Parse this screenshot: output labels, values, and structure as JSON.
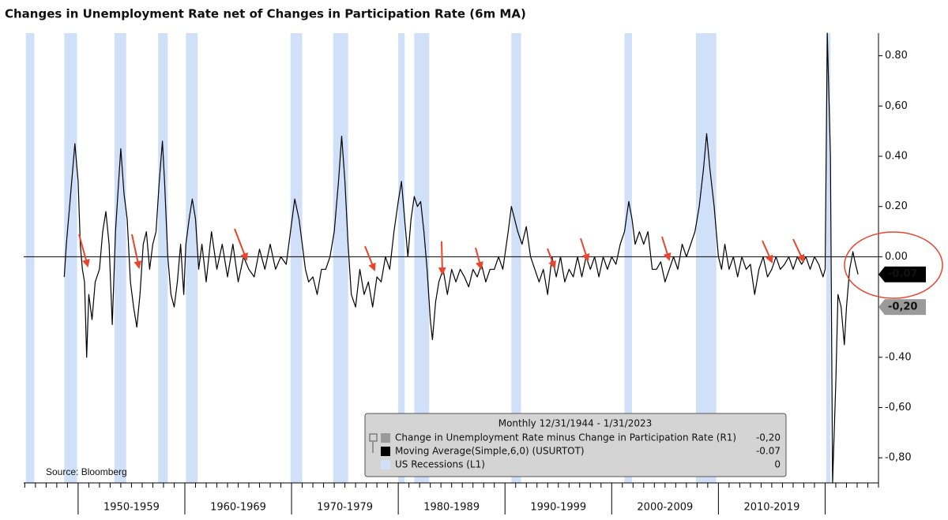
{
  "chart_data": {
    "type": "line",
    "title": "Changes in Unemployment Rate net of Changes in Participation Rate (6m MA)",
    "source": "Source: Bloomberg",
    "legend_title": "Monthly 12/31/1944 - 1/31/2023",
    "xlim": [
      1944.9,
      2025
    ],
    "ylim": [
      -0.9,
      0.89
    ],
    "xticks": [
      {
        "value": 1955,
        "label": "1950-1959"
      },
      {
        "value": 1965,
        "label": "1960-1969"
      },
      {
        "value": 1975,
        "label": "1970-1979"
      },
      {
        "value": 1985,
        "label": "1980-1989"
      },
      {
        "value": 1995,
        "label": "1990-1999"
      },
      {
        "value": 2005,
        "label": "2000-2009"
      },
      {
        "value": 2015,
        "label": "2010-2019"
      }
    ],
    "yticks": [
      {
        "value": 0.8,
        "label": "0.80"
      },
      {
        "value": 0.6,
        "label": "0,60"
      },
      {
        "value": 0.4,
        "label": "0.40"
      },
      {
        "value": 0.2,
        "label": "0.20"
      },
      {
        "value": 0,
        "label": "0.00"
      },
      {
        "value": -0.4,
        "label": "-0.40"
      },
      {
        "value": -0.6,
        "label": "-0,60"
      },
      {
        "value": -0.8,
        "label": "-0,80"
      }
    ],
    "recessions": {
      "name": "US Recessions (L1)",
      "color": "#cfe0f8",
      "value_label": "0",
      "periods": [
        [
          1945.1,
          1945.9
        ],
        [
          1948.7,
          1949.9
        ],
        [
          1953.4,
          1954.5
        ],
        [
          1957.5,
          1958.4
        ],
        [
          1960.1,
          1961.2
        ],
        [
          1969.9,
          1971.0
        ],
        [
          1973.9,
          1975.3
        ],
        [
          1980.0,
          1980.6
        ],
        [
          1981.5,
          1982.9
        ],
        [
          1990.6,
          1991.5
        ],
        [
          2001.2,
          2001.9
        ],
        [
          2007.9,
          2009.8
        ],
        [
          2020.1,
          2020.5
        ]
      ]
    },
    "series": [
      {
        "name": "Change in Unemployment Rate minus Change in Participation Rate (R1)",
        "color": "#9a9a9a",
        "last_value": -0.2,
        "last_label": "-0,20"
      },
      {
        "name": "Moving Average(Simple,6,0) (USURTOT)",
        "color": "#000000",
        "last_value": -0.07,
        "last_label": "-0.07",
        "x": [
          1948.7,
          1948.9,
          1949.2,
          1949.5,
          1949.7,
          1950.0,
          1950.2,
          1950.4,
          1950.6,
          1950.8,
          1951.0,
          1951.3,
          1951.6,
          1952.0,
          1952.3,
          1952.6,
          1952.9,
          1953.2,
          1953.5,
          1953.8,
          1954.0,
          1954.3,
          1954.6,
          1954.9,
          1955.2,
          1955.5,
          1955.8,
          1956.1,
          1956.4,
          1956.7,
          1957.0,
          1957.3,
          1957.6,
          1957.9,
          1958.1,
          1958.4,
          1958.7,
          1959.0,
          1959.3,
          1959.6,
          1959.9,
          1960.1,
          1960.4,
          1960.7,
          1961.0,
          1961.3,
          1961.6,
          1962.0,
          1962.5,
          1963.0,
          1963.5,
          1964.0,
          1964.5,
          1965.0,
          1965.5,
          1966.0,
          1966.5,
          1967.0,
          1967.5,
          1968.0,
          1968.5,
          1969.0,
          1969.5,
          1969.9,
          1970.3,
          1970.7,
          1971.0,
          1971.3,
          1971.6,
          1972.0,
          1972.4,
          1972.8,
          1973.2,
          1973.6,
          1974.0,
          1974.4,
          1974.7,
          1975.0,
          1975.3,
          1975.6,
          1976.0,
          1976.4,
          1976.8,
          1977.2,
          1977.6,
          1978.0,
          1978.4,
          1978.8,
          1979.2,
          1979.6,
          1980.0,
          1980.3,
          1980.6,
          1980.9,
          1981.2,
          1981.5,
          1981.8,
          1982.1,
          1982.4,
          1982.7,
          1983.0,
          1983.2,
          1983.5,
          1983.8,
          1984.2,
          1984.6,
          1985.0,
          1985.4,
          1985.8,
          1986.2,
          1986.6,
          1987.0,
          1987.4,
          1987.8,
          1988.2,
          1988.6,
          1989.0,
          1989.4,
          1989.8,
          1990.3,
          1990.6,
          1990.9,
          1991.2,
          1991.6,
          1992.0,
          1992.4,
          1992.8,
          1993.2,
          1993.6,
          1994.0,
          1994.4,
          1994.8,
          1995.2,
          1995.6,
          1996.0,
          1996.4,
          1996.8,
          1997.2,
          1997.6,
          1998.0,
          1998.4,
          1998.8,
          1999.2,
          1999.6,
          2000.0,
          2000.4,
          2000.8,
          2001.2,
          2001.6,
          2001.9,
          2002.2,
          2002.6,
          2003.0,
          2003.4,
          2003.8,
          2004.2,
          2004.6,
          2005.0,
          2005.4,
          2005.8,
          2006.2,
          2006.6,
          2007.0,
          2007.4,
          2007.8,
          2008.2,
          2008.6,
          2008.9,
          2009.2,
          2009.6,
          2010.0,
          2010.3,
          2010.6,
          2011.0,
          2011.4,
          2011.8,
          2012.2,
          2012.6,
          2013.0,
          2013.4,
          2013.8,
          2014.2,
          2014.6,
          2015.0,
          2015.4,
          2015.8,
          2016.2,
          2016.6,
          2017.0,
          2017.4,
          2017.8,
          2018.2,
          2018.6,
          2019.0,
          2019.4,
          2019.8,
          2020.0,
          2020.2,
          2020.5,
          2020.7,
          2021.0,
          2021.2,
          2021.5,
          2021.8,
          2022.0,
          2022.3,
          2022.6,
          2022.8,
          2023.08
        ],
        "values": [
          -0.08,
          0.05,
          0.2,
          0.35,
          0.45,
          0.3,
          0.05,
          -0.05,
          -0.1,
          -0.4,
          -0.15,
          -0.25,
          -0.1,
          -0.05,
          0.1,
          0.18,
          0.05,
          -0.27,
          0.1,
          0.3,
          0.43,
          0.25,
          0.15,
          -0.1,
          -0.2,
          -0.28,
          -0.15,
          0.05,
          0.1,
          -0.05,
          0.05,
          0.1,
          0.3,
          0.46,
          0.3,
          0.0,
          -0.15,
          -0.2,
          -0.1,
          0.05,
          -0.15,
          0.05,
          0.15,
          0.23,
          0.15,
          -0.05,
          0.05,
          -0.1,
          0.1,
          -0.05,
          0.05,
          -0.08,
          0.05,
          -0.1,
          0.0,
          -0.05,
          -0.08,
          0.03,
          -0.05,
          0.05,
          -0.05,
          0.0,
          -0.03,
          0.1,
          0.23,
          0.15,
          0.05,
          -0.05,
          -0.1,
          -0.08,
          -0.15,
          -0.05,
          -0.05,
          0.0,
          0.1,
          0.3,
          0.48,
          0.3,
          0.05,
          -0.15,
          -0.2,
          -0.05,
          -0.15,
          -0.1,
          -0.2,
          -0.08,
          -0.1,
          0.0,
          -0.05,
          0.1,
          0.22,
          0.3,
          0.15,
          0.0,
          0.15,
          0.24,
          0.2,
          0.22,
          0.1,
          -0.05,
          -0.25,
          -0.33,
          -0.18,
          -0.1,
          -0.05,
          -0.15,
          -0.05,
          -0.1,
          -0.05,
          -0.08,
          -0.12,
          -0.05,
          -0.08,
          -0.03,
          -0.1,
          -0.05,
          -0.05,
          0.0,
          -0.05,
          0.1,
          0.2,
          0.15,
          0.1,
          0.05,
          0.12,
          0.0,
          -0.05,
          -0.1,
          -0.05,
          -0.15,
          0.0,
          -0.08,
          0.0,
          -0.1,
          -0.05,
          -0.08,
          0.0,
          -0.08,
          0.0,
          -0.05,
          0.0,
          -0.08,
          0.0,
          -0.05,
          0.0,
          -0.03,
          0.05,
          0.1,
          0.22,
          0.15,
          0.05,
          0.1,
          0.05,
          0.1,
          -0.05,
          -0.05,
          -0.02,
          -0.1,
          -0.05,
          0.0,
          -0.05,
          0.05,
          0.0,
          0.05,
          0.1,
          0.2,
          0.35,
          0.49,
          0.35,
          0.2,
          0.0,
          -0.05,
          0.05,
          -0.05,
          0.0,
          -0.08,
          0.0,
          -0.05,
          -0.03,
          -0.15,
          -0.05,
          0.0,
          -0.08,
          -0.05,
          0.0,
          -0.05,
          -0.03,
          0.0,
          -0.05,
          0.0,
          -0.03,
          0.0,
          -0.05,
          0.0,
          -0.03,
          -0.08,
          -0.05,
          0.89,
          0.4,
          -0.9,
          -0.5,
          -0.15,
          -0.2,
          -0.35,
          -0.2,
          -0.05,
          0.02,
          -0.02,
          -0.07
        ]
      }
    ]
  }
}
